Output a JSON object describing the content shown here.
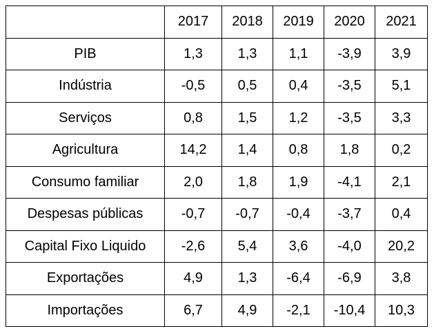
{
  "table": {
    "corner": "",
    "columns": [
      "2017",
      "2018",
      "2019",
      "2020",
      "2021"
    ],
    "rows": [
      {
        "label": "PIB",
        "values": [
          "1,3",
          "1,3",
          "1,1",
          "-3,9",
          "3,9"
        ]
      },
      {
        "label": "Indústria",
        "values": [
          "-0,5",
          "0,5",
          "0,4",
          "-3,5",
          "5,1"
        ]
      },
      {
        "label": "Serviços",
        "values": [
          "0,8",
          "1,5",
          "1,2",
          "-3,5",
          "3,3"
        ]
      },
      {
        "label": "Agricultura",
        "values": [
          "14,2",
          "1,4",
          "0,8",
          "1,8",
          "0,2"
        ]
      },
      {
        "label": "Consumo familiar",
        "values": [
          "2,0",
          "1,8",
          "1,9",
          "-4,1",
          "2,1"
        ]
      },
      {
        "label": "Despesas públicas",
        "values": [
          "-0,7",
          "-0,7",
          "-0,4",
          "-3,7",
          "0,4"
        ]
      },
      {
        "label": "Capital Fixo Liquido",
        "values": [
          "-2,6",
          "5,4",
          "3,6",
          "-4,0",
          "20,2"
        ]
      },
      {
        "label": "Exportações",
        "values": [
          "4,9",
          "1,3",
          "-6,4",
          "-6,9",
          "3,8"
        ]
      },
      {
        "label": "Importações",
        "values": [
          "6,7",
          "4,9",
          "-2,1",
          "-10,4",
          "10,3"
        ]
      }
    ]
  }
}
